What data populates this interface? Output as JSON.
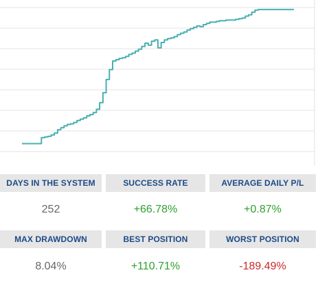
{
  "colors": {
    "line": "#4aafb0",
    "header_bg": "#e6e6e6",
    "header_text": "#1d4a87",
    "positive": "#2ea02e",
    "negative": "#cc2a2a",
    "neutral": "#666666"
  },
  "chart_data": {
    "type": "line",
    "title": "",
    "xlabel": "",
    "ylabel": "",
    "grid": true,
    "x": [
      0,
      1,
      2,
      3,
      4,
      5,
      6,
      7,
      8,
      9,
      10,
      11,
      12,
      13,
      14,
      15,
      16,
      17,
      18,
      19,
      20,
      21,
      22,
      23,
      24,
      25,
      26,
      27,
      28,
      29,
      30,
      31,
      32,
      33,
      34,
      35,
      36,
      37,
      38,
      39,
      40,
      41,
      42,
      43,
      44,
      45,
      46,
      47,
      48,
      49,
      50,
      51,
      52,
      53,
      54,
      55,
      56,
      57,
      58,
      59,
      60,
      61,
      62,
      63,
      64,
      65,
      66,
      67,
      68,
      69,
      70,
      71,
      72,
      73,
      74,
      75,
      76,
      77,
      78,
      79,
      80,
      81,
      82,
      83,
      84
    ],
    "values": [
      0.3,
      0.3,
      0.3,
      0.3,
      0.3,
      0.3,
      1.2,
      1.3,
      1.4,
      1.6,
      1.9,
      2.4,
      2.7,
      3.0,
      3.2,
      3.3,
      3.5,
      3.8,
      4.0,
      4.2,
      4.5,
      4.7,
      5.0,
      5.5,
      6.5,
      8.0,
      10.0,
      11.5,
      12.8,
      13.0,
      13.2,
      13.3,
      13.5,
      13.8,
      14.0,
      14.3,
      14.6,
      15.0,
      15.5,
      15.2,
      15.8,
      16.0,
      14.8,
      15.6,
      16.0,
      16.2,
      16.3,
      16.5,
      16.8,
      17.0,
      17.2,
      17.5,
      17.7,
      17.9,
      18.1,
      18.0,
      18.3,
      18.5,
      18.7,
      18.7,
      18.8,
      18.9,
      18.9,
      19.0,
      19.0,
      19.0,
      19.1,
      19.2,
      19.3,
      19.6,
      19.8,
      20.2,
      20.5,
      20.6,
      20.6,
      20.6,
      20.6,
      20.6,
      20.6,
      20.6,
      20.6,
      20.6,
      20.6,
      20.6,
      20.6
    ],
    "ylim": [
      -1,
      21
    ]
  },
  "stats": {
    "days_in_system": {
      "label": "DAYS IN THE SYSTEM",
      "value": "252"
    },
    "success_rate": {
      "label": "SUCCESS RATE",
      "value": "+66.78%"
    },
    "average_daily_pl": {
      "label": "AVERAGE DAILY P/L",
      "value": "+0.87%"
    },
    "max_drawdown": {
      "label": "MAX DRAWDOWN",
      "value": "8.04%"
    },
    "best_position": {
      "label": "BEST POSITION",
      "value": "+110.71%"
    },
    "worst_position": {
      "label": "WORST POSITION",
      "value": "-189.49%"
    }
  }
}
